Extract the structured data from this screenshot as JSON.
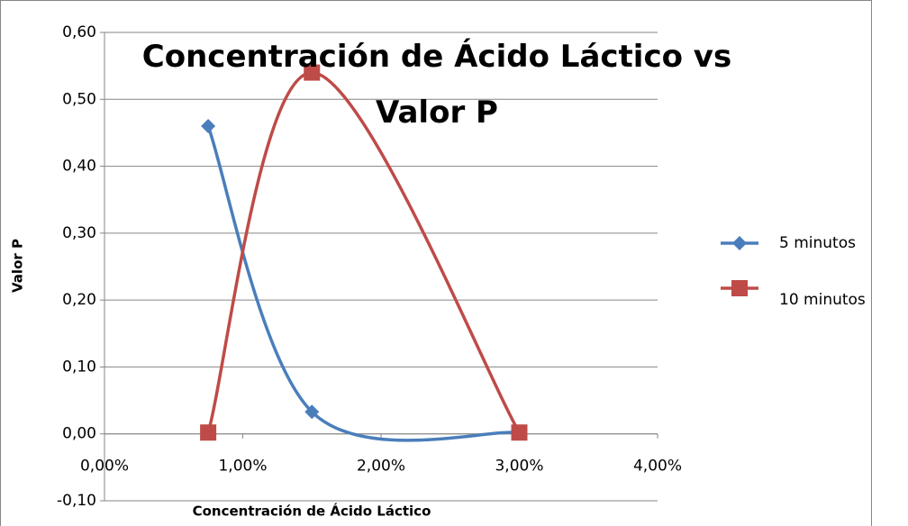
{
  "chart_data": {
    "type": "scatter",
    "title": "Concentración de Ácido Láctico vs Valor P",
    "x_label": "Concentración de Ácido Láctico",
    "y_label": "Valor P",
    "smooth": true,
    "grid": true,
    "legend": "right",
    "x": [
      0.75,
      1.5,
      3
    ],
    "series": [
      {
        "name": "5 minutos",
        "color": "#4a7ebb",
        "marker": "diamond",
        "values": [
          0.46,
          0.033,
          0.002
        ]
      },
      {
        "name": "10 minutos",
        "color": "#be4b48",
        "marker": "square",
        "values": [
          0.002,
          0.54,
          0.002
        ]
      }
    ],
    "xlim": [
      0,
      4
    ],
    "xticks": [
      {
        "value": 0,
        "label": "0,00%"
      },
      {
        "value": 1,
        "label": "1,00%"
      },
      {
        "value": 2,
        "label": "2,00%"
      },
      {
        "value": 3,
        "label": "3,00%"
      },
      {
        "value": 4,
        "label": "4,00%"
      }
    ],
    "ylim": [
      -0.1,
      0.6
    ],
    "yticks": [
      {
        "value": -0.1,
        "label": "-0,10"
      },
      {
        "value": 0,
        "label": "0,00"
      },
      {
        "value": 0.1,
        "label": "0,10"
      },
      {
        "value": 0.2,
        "label": "0,20"
      },
      {
        "value": 0.3,
        "label": "0,30"
      },
      {
        "value": 0.4,
        "label": "0,40"
      },
      {
        "value": 0.5,
        "label": "0,50"
      },
      {
        "value": 0.6,
        "label": "0,60"
      }
    ]
  }
}
